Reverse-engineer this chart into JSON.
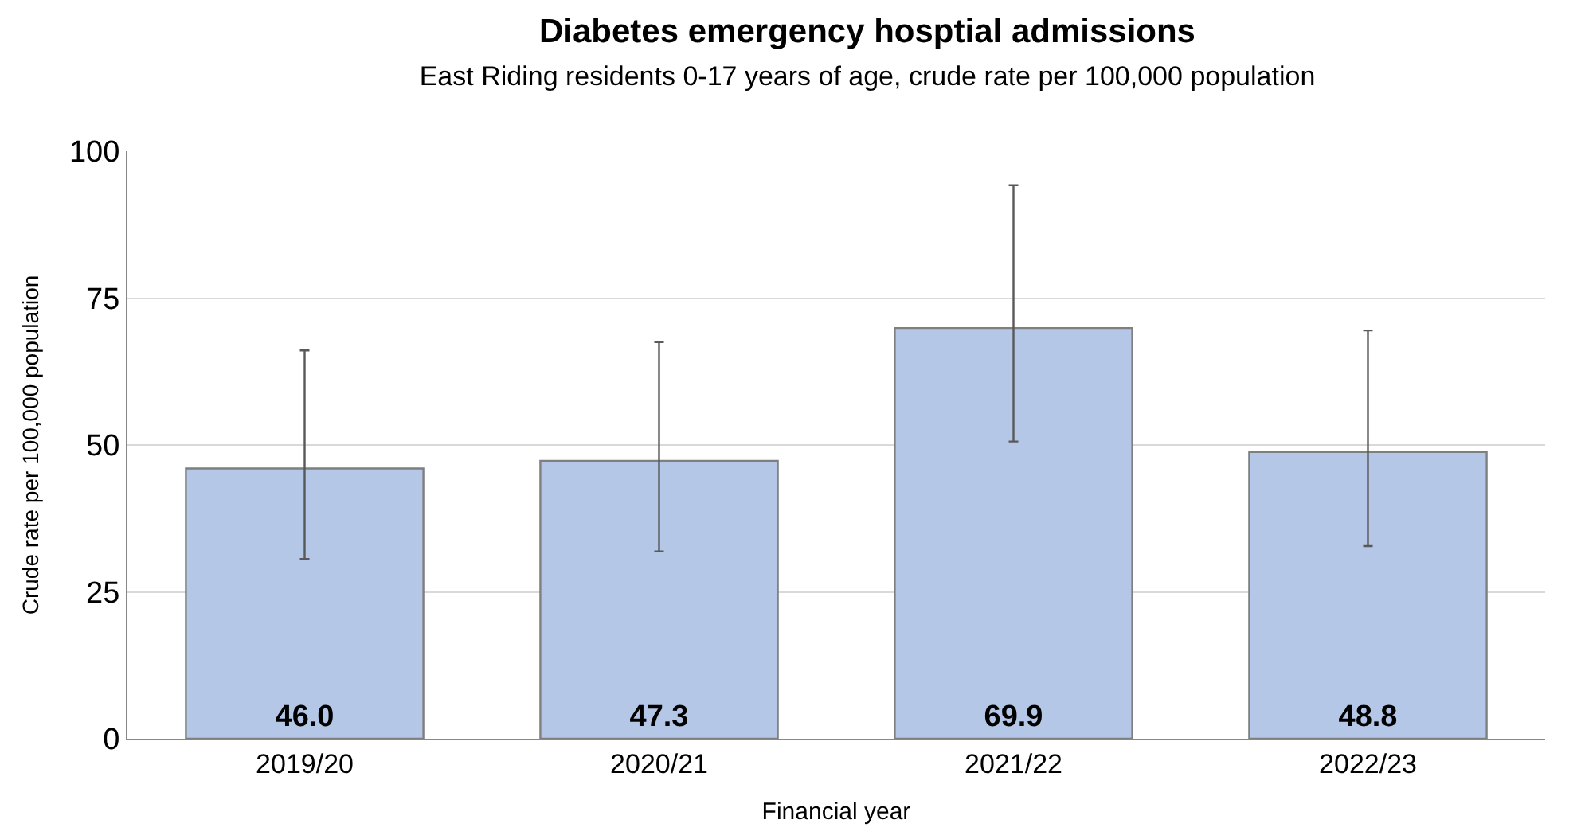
{
  "chart_data": {
    "type": "bar",
    "title": "Diabetes emergency hosptial admissions",
    "subtitle": "East Riding residents 0-17 years of age, crude rate per 100,000 population",
    "xlabel": "Financial year",
    "ylabel": "Crude rate per 100,000 population",
    "categories": [
      "2019/20",
      "2020/21",
      "2021/22",
      "2022/23"
    ],
    "values": [
      46.0,
      47.3,
      69.9,
      48.8
    ],
    "value_labels": [
      "46.0",
      "47.3",
      "69.9",
      "48.8"
    ],
    "errors": [
      [
        30.6,
        66.1
      ],
      [
        31.9,
        67.5
      ],
      [
        50.6,
        94.2
      ],
      [
        32.8,
        69.5
      ]
    ],
    "color": "#b4c7e7",
    "ylim": [
      0,
      100
    ],
    "yticks": [
      0,
      25,
      50,
      75,
      100
    ],
    "grid": "y",
    "legend": false
  }
}
